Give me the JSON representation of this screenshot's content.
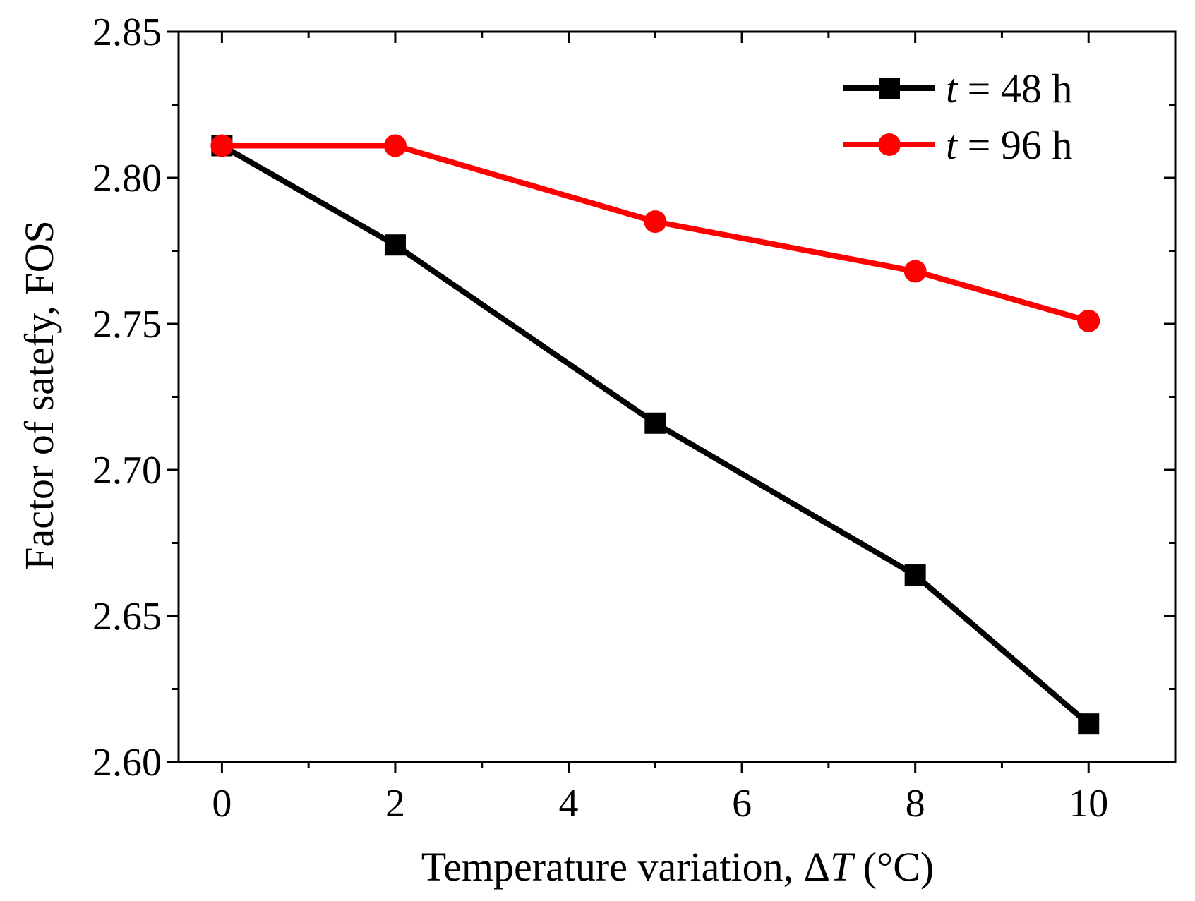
{
  "chart_data": {
    "type": "line",
    "title": "",
    "xlabel": {
      "prefix": "Temperature variation, Δ",
      "italic": "T",
      "suffix": " (°C)"
    },
    "ylabel": "Factor of satefy, FOS",
    "xlim": [
      -0.5,
      11
    ],
    "ylim": [
      2.6,
      2.85
    ],
    "x_major_ticks": [
      0,
      2,
      4,
      6,
      8,
      10
    ],
    "x_minor_ticks": [
      1,
      3,
      5,
      7,
      9
    ],
    "x_tick_labels": [
      "0",
      "2",
      "4",
      "6",
      "8",
      "10"
    ],
    "y_major_ticks": [
      2.6,
      2.65,
      2.7,
      2.75,
      2.8,
      2.85
    ],
    "y_minor_ticks": [
      2.625,
      2.675,
      2.725,
      2.775,
      2.825
    ],
    "y_tick_labels": [
      "2.60",
      "2.65",
      "2.70",
      "2.75",
      "2.80",
      "2.85"
    ],
    "grid": false,
    "legend_position": "top-right",
    "series": [
      {
        "name": "t = 48 h",
        "legend_italic": "t",
        "legend_rest": " = 48 h",
        "color": "#000000",
        "marker": "square",
        "x": [
          0,
          2,
          5,
          8,
          10
        ],
        "y": [
          2.811,
          2.777,
          2.716,
          2.664,
          2.613
        ]
      },
      {
        "name": "t = 96 h",
        "legend_italic": "t",
        "legend_rest": " = 96 h",
        "color": "#ff0000",
        "marker": "circle",
        "x": [
          0,
          2,
          5,
          8,
          10
        ],
        "y": [
          2.811,
          2.811,
          2.785,
          2.768,
          2.751
        ]
      }
    ]
  }
}
